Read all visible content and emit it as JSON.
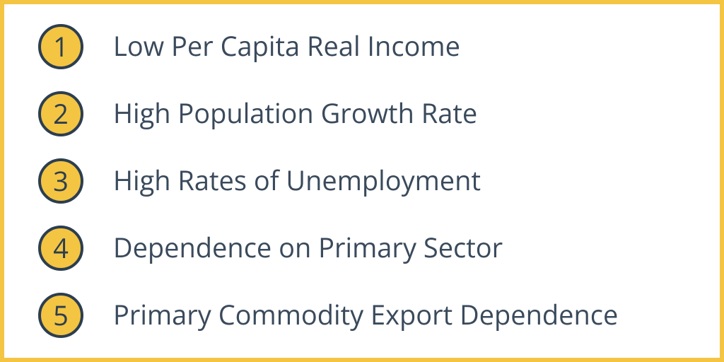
{
  "styling": {
    "frame_border_color": "#f4c542",
    "frame_border_width": 6,
    "background_color": "#ffffff",
    "badge_fill_color": "#f4c542",
    "badge_border_color": "#2c3e50",
    "badge_border_width": 4,
    "badge_diameter": 64,
    "number_font_size": 38,
    "number_color": "#2c3e50",
    "label_font_size": 38,
    "label_color": "#3a4a5c",
    "gap_badge_label": 42
  },
  "items": [
    {
      "number": "1",
      "label": "Low Per Capita Real Income"
    },
    {
      "number": "2",
      "label": "High Population Growth Rate"
    },
    {
      "number": "3",
      "label": "High Rates of Unemployment"
    },
    {
      "number": "4",
      "label": "Dependence on Primary Sector"
    },
    {
      "number": "5",
      "label": "Primary Commodity Export Dependence"
    }
  ]
}
